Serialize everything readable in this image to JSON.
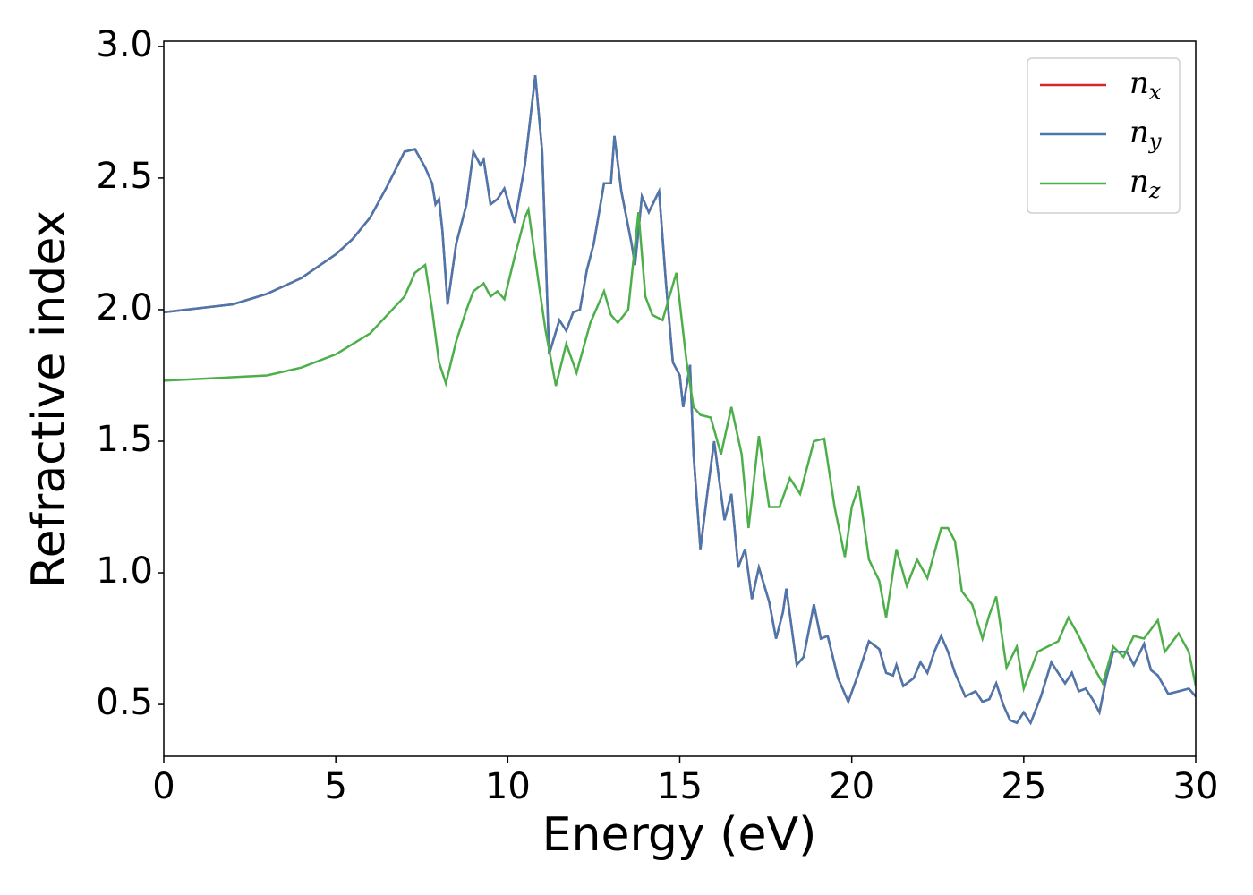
{
  "chart_data": {
    "type": "line",
    "xlabel": "Energy (eV)",
    "ylabel": "Refractive index",
    "xlim": [
      0,
      30
    ],
    "xticks": [
      0,
      5,
      10,
      15,
      20,
      25,
      30
    ],
    "ylim": [
      0.303,
      3.02
    ],
    "yticks": [
      0.5,
      {
        "value": 1,
        "label": "1.0"
      },
      1.5,
      {
        "value": 2,
        "label": "2.0"
      },
      2.5,
      {
        "value": 3,
        "label": "3.0"
      }
    ],
    "legend": "upper right",
    "series": [
      {
        "name": "nx",
        "color": "#d62728",
        "x": [
          0,
          2,
          3,
          4,
          5,
          5.5,
          6,
          6.5,
          7,
          7.3,
          7.6,
          7.8,
          7.9,
          8.0,
          8.1,
          8.25,
          8.5,
          8.8,
          9.0,
          9.2,
          9.3,
          9.5,
          9.7,
          9.9,
          10.2,
          10.5,
          10.8,
          11.0,
          11.2,
          11.5,
          11.7,
          11.9,
          12.1,
          12.3,
          12.5,
          12.8,
          13.0,
          13.1,
          13.3,
          13.6,
          13.7,
          13.9,
          14.1,
          14.4,
          14.6,
          14.8,
          15.0,
          15.1,
          15.3,
          15.4,
          15.6,
          15.8,
          16.0,
          16.3,
          16.5,
          16.7,
          16.9,
          17.1,
          17.3,
          17.6,
          17.8,
          18.0,
          18.1,
          18.4,
          18.6,
          18.9,
          19.1,
          19.3,
          19.6,
          19.9,
          20.2,
          20.5,
          20.8,
          21.0,
          21.2,
          21.3,
          21.5,
          21.8,
          22.0,
          22.2,
          22.4,
          22.6,
          22.8,
          23.0,
          23.3,
          23.6,
          23.8,
          24.0,
          24.2,
          24.4,
          24.6,
          24.8,
          25.0,
          25.2,
          25.5,
          25.8,
          26.0,
          26.2,
          26.4,
          26.6,
          26.8,
          27.0,
          27.2,
          27.4,
          27.6,
          28.0,
          28.2,
          28.5,
          28.7,
          28.9,
          29.2,
          29.5,
          29.8,
          30.0
        ],
        "values": [
          1.99,
          2.02,
          2.06,
          2.12,
          2.21,
          2.27,
          2.35,
          2.47,
          2.6,
          2.61,
          2.54,
          2.48,
          2.4,
          2.42,
          2.3,
          2.02,
          2.25,
          2.4,
          2.6,
          2.55,
          2.57,
          2.4,
          2.42,
          2.46,
          2.33,
          2.55,
          2.89,
          2.6,
          1.83,
          1.96,
          1.92,
          1.99,
          2.0,
          2.15,
          2.25,
          2.48,
          2.48,
          2.66,
          2.45,
          2.25,
          2.17,
          2.43,
          2.37,
          2.45,
          2.1,
          1.8,
          1.75,
          1.63,
          1.79,
          1.45,
          1.09,
          1.3,
          1.5,
          1.2,
          1.3,
          1.02,
          1.09,
          0.9,
          1.02,
          0.89,
          0.75,
          0.85,
          0.94,
          0.65,
          0.68,
          0.88,
          0.75,
          0.76,
          0.6,
          0.51,
          0.62,
          0.74,
          0.71,
          0.62,
          0.61,
          0.65,
          0.57,
          0.6,
          0.66,
          0.62,
          0.7,
          0.76,
          0.7,
          0.62,
          0.53,
          0.55,
          0.51,
          0.52,
          0.58,
          0.5,
          0.44,
          0.43,
          0.47,
          0.43,
          0.53,
          0.66,
          0.62,
          0.58,
          0.62,
          0.55,
          0.56,
          0.52,
          0.47,
          0.6,
          0.7,
          0.7,
          0.65,
          0.73,
          0.63,
          0.61,
          0.54,
          0.55,
          0.56,
          0.53
        ]
      },
      {
        "name": "ny",
        "color": "#4a77ad",
        "x": [
          0,
          2,
          3,
          4,
          5,
          5.5,
          6,
          6.5,
          7,
          7.3,
          7.6,
          7.8,
          7.9,
          8.0,
          8.1,
          8.25,
          8.5,
          8.8,
          9.0,
          9.2,
          9.3,
          9.5,
          9.7,
          9.9,
          10.2,
          10.5,
          10.8,
          11.0,
          11.2,
          11.5,
          11.7,
          11.9,
          12.1,
          12.3,
          12.5,
          12.8,
          13.0,
          13.1,
          13.3,
          13.6,
          13.7,
          13.9,
          14.1,
          14.4,
          14.6,
          14.8,
          15.0,
          15.1,
          15.3,
          15.4,
          15.6,
          15.8,
          16.0,
          16.3,
          16.5,
          16.7,
          16.9,
          17.1,
          17.3,
          17.6,
          17.8,
          18.0,
          18.1,
          18.4,
          18.6,
          18.9,
          19.1,
          19.3,
          19.6,
          19.9,
          20.2,
          20.5,
          20.8,
          21.0,
          21.2,
          21.3,
          21.5,
          21.8,
          22.0,
          22.2,
          22.4,
          22.6,
          22.8,
          23.0,
          23.3,
          23.6,
          23.8,
          24.0,
          24.2,
          24.4,
          24.6,
          24.8,
          25.0,
          25.2,
          25.5,
          25.8,
          26.0,
          26.2,
          26.4,
          26.6,
          26.8,
          27.0,
          27.2,
          27.4,
          27.6,
          28.0,
          28.2,
          28.5,
          28.7,
          28.9,
          29.2,
          29.5,
          29.8,
          30.0
        ],
        "values": [
          1.99,
          2.02,
          2.06,
          2.12,
          2.21,
          2.27,
          2.35,
          2.47,
          2.6,
          2.61,
          2.54,
          2.48,
          2.4,
          2.42,
          2.3,
          2.02,
          2.25,
          2.4,
          2.6,
          2.55,
          2.57,
          2.4,
          2.42,
          2.46,
          2.33,
          2.55,
          2.89,
          2.6,
          1.83,
          1.96,
          1.92,
          1.99,
          2.0,
          2.15,
          2.25,
          2.48,
          2.48,
          2.66,
          2.45,
          2.25,
          2.17,
          2.43,
          2.37,
          2.45,
          2.1,
          1.8,
          1.75,
          1.63,
          1.79,
          1.45,
          1.09,
          1.3,
          1.5,
          1.2,
          1.3,
          1.02,
          1.09,
          0.9,
          1.02,
          0.89,
          0.75,
          0.85,
          0.94,
          0.65,
          0.68,
          0.88,
          0.75,
          0.76,
          0.6,
          0.51,
          0.62,
          0.74,
          0.71,
          0.62,
          0.61,
          0.65,
          0.57,
          0.6,
          0.66,
          0.62,
          0.7,
          0.76,
          0.7,
          0.62,
          0.53,
          0.55,
          0.51,
          0.52,
          0.58,
          0.5,
          0.44,
          0.43,
          0.47,
          0.43,
          0.53,
          0.66,
          0.62,
          0.58,
          0.62,
          0.55,
          0.56,
          0.52,
          0.47,
          0.6,
          0.7,
          0.7,
          0.65,
          0.73,
          0.63,
          0.61,
          0.54,
          0.55,
          0.56,
          0.53
        ]
      },
      {
        "name": "nz",
        "color": "#4daf4a",
        "x": [
          0,
          3,
          4,
          5,
          6,
          6.5,
          7,
          7.3,
          7.6,
          7.8,
          8.0,
          8.2,
          8.5,
          8.8,
          9.0,
          9.3,
          9.5,
          9.7,
          9.9,
          10.2,
          10.5,
          10.6,
          10.9,
          11.1,
          11.4,
          11.7,
          12.0,
          12.4,
          12.8,
          13.0,
          13.2,
          13.5,
          13.8,
          14.0,
          14.2,
          14.5,
          14.9,
          15.2,
          15.4,
          15.6,
          15.9,
          16.2,
          16.5,
          16.8,
          17.0,
          17.3,
          17.6,
          17.9,
          18.2,
          18.5,
          18.9,
          19.2,
          19.5,
          19.8,
          20.0,
          20.2,
          20.5,
          20.8,
          21.0,
          21.3,
          21.6,
          21.9,
          22.2,
          22.6,
          22.8,
          23.0,
          23.2,
          23.5,
          23.8,
          24.0,
          24.2,
          24.5,
          24.8,
          25.0,
          25.4,
          25.7,
          26.0,
          26.3,
          26.6,
          27.0,
          27.3,
          27.6,
          27.9,
          28.2,
          28.5,
          28.9,
          29.1,
          29.5,
          29.8,
          30.0
        ],
        "values": [
          1.73,
          1.75,
          1.78,
          1.83,
          1.91,
          1.98,
          2.05,
          2.14,
          2.17,
          2.0,
          1.8,
          1.72,
          1.88,
          2.0,
          2.07,
          2.1,
          2.05,
          2.07,
          2.04,
          2.2,
          2.35,
          2.38,
          2.1,
          1.92,
          1.71,
          1.87,
          1.76,
          1.95,
          2.07,
          1.98,
          1.95,
          2.0,
          2.37,
          2.05,
          1.98,
          1.96,
          2.14,
          1.8,
          1.63,
          1.6,
          1.59,
          1.45,
          1.63,
          1.45,
          1.17,
          1.52,
          1.25,
          1.25,
          1.36,
          1.3,
          1.5,
          1.51,
          1.25,
          1.06,
          1.25,
          1.33,
          1.05,
          0.97,
          0.83,
          1.09,
          0.95,
          1.05,
          0.98,
          1.17,
          1.17,
          1.12,
          0.93,
          0.88,
          0.75,
          0.84,
          0.91,
          0.64,
          0.72,
          0.56,
          0.7,
          0.72,
          0.74,
          0.83,
          0.76,
          0.65,
          0.58,
          0.72,
          0.68,
          0.76,
          0.75,
          0.82,
          0.7,
          0.77,
          0.7,
          0.57
        ]
      }
    ]
  }
}
